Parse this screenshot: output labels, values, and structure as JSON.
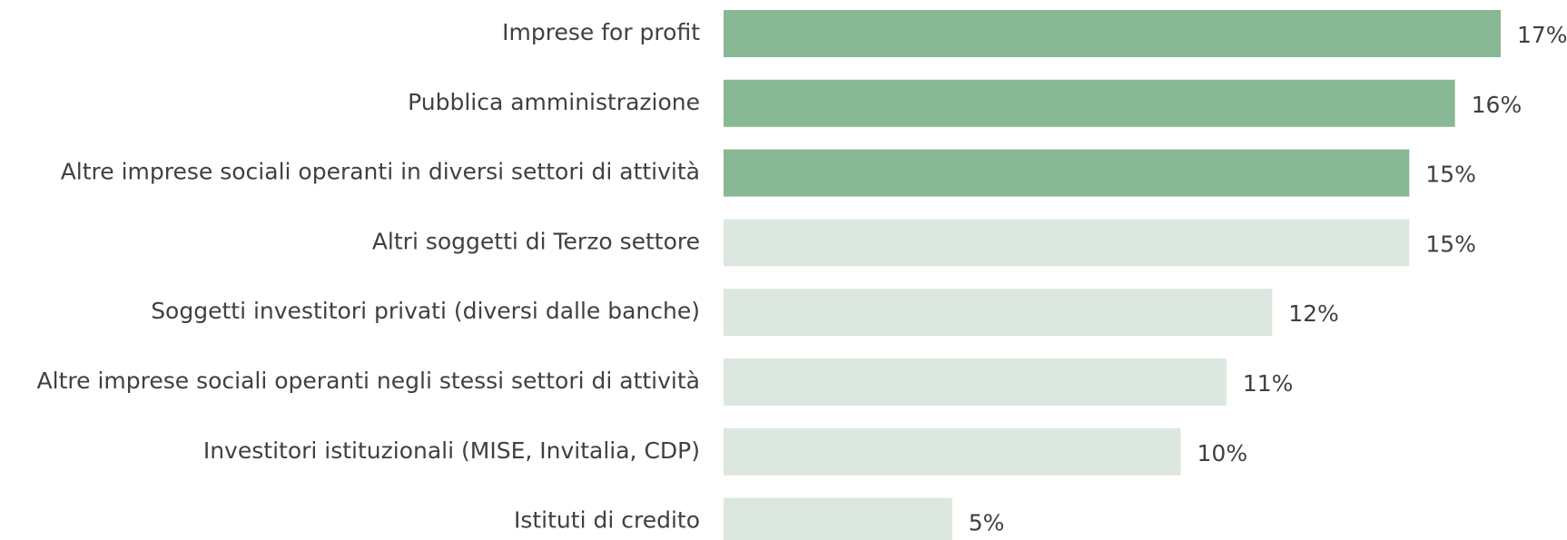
{
  "chart_data": {
    "type": "bar",
    "orientation": "horizontal",
    "categories": [
      "Imprese for profit",
      "Pubblica amministrazione",
      "Altre imprese sociali operanti in diversi settori di attività",
      "Altri soggetti di Terzo settore",
      "Soggetti investitori privati (diversi dalle banche)",
      "Altre imprese sociali operanti negli stessi settori di attività",
      "Investitori istituzionali (MISE, Invitalia, CDP)",
      "Istituti di credito"
    ],
    "values": [
      17,
      16,
      15,
      15,
      12,
      11,
      10,
      5
    ],
    "value_labels": [
      "17%",
      "16%",
      "15%",
      "15%",
      "12%",
      "11%",
      "10%",
      "5%"
    ],
    "colors": [
      "#88b894",
      "#88b894",
      "#88b894",
      "#dce8df",
      "#dce8df",
      "#dce8df",
      "#dce8df",
      "#dce8df"
    ]
  }
}
